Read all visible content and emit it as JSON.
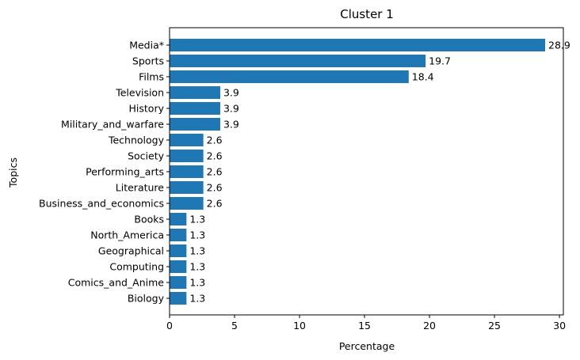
{
  "chart_data": {
    "type": "bar",
    "orientation": "horizontal",
    "title": "Cluster 1",
    "xlabel": "Percentage",
    "ylabel": "Topics",
    "xlim": [
      0,
      30.3
    ],
    "xticks": [
      0,
      5,
      10,
      15,
      20,
      25,
      30
    ],
    "grid": false,
    "bar_color": "#1f77b4",
    "categories": [
      "Media*",
      "Sports",
      "Films",
      "Television",
      "History",
      "Military_and_warfare",
      "Technology",
      "Society",
      "Performing_arts",
      "Literature",
      "Business_and_economics",
      "Books",
      "North_America",
      "Geographical",
      "Computing",
      "Comics_and_Anime",
      "Biology"
    ],
    "values": [
      28.9,
      19.7,
      18.4,
      3.9,
      3.9,
      3.9,
      2.6,
      2.6,
      2.6,
      2.6,
      2.6,
      1.3,
      1.3,
      1.3,
      1.3,
      1.3,
      1.3
    ],
    "data_labels": [
      "28.9",
      "19.7",
      "18.4",
      "3.9",
      "3.9",
      "3.9",
      "2.6",
      "2.6",
      "2.6",
      "2.6",
      "2.6",
      "1.3",
      "1.3",
      "1.3",
      "1.3",
      "1.3",
      "1.3"
    ]
  }
}
